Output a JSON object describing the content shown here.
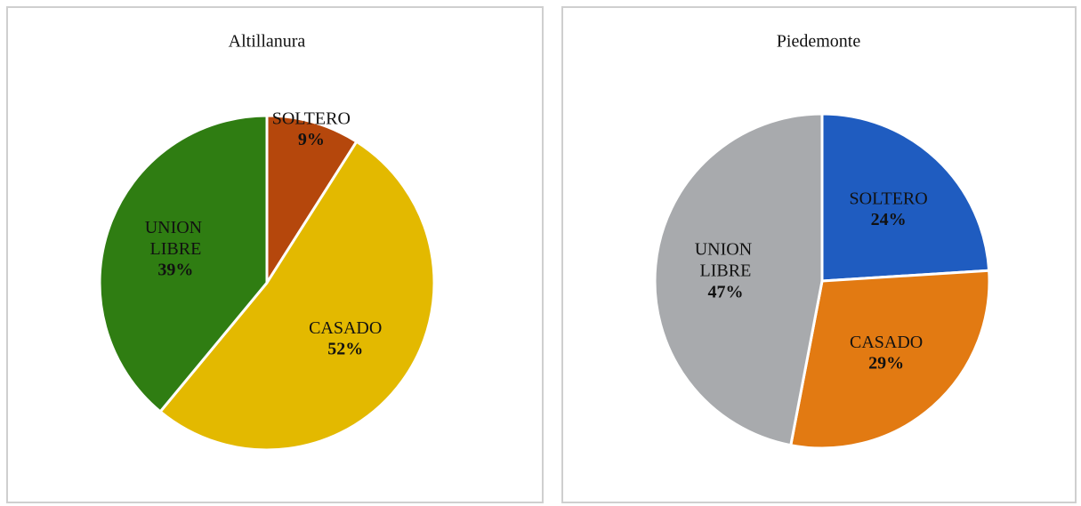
{
  "chart_data": [
    {
      "type": "pie",
      "title": "Altillanura",
      "categories": [
        "SOLTERO",
        "CASADO",
        "UNION LIBRE"
      ],
      "values": [
        9,
        52,
        39
      ],
      "value_labels": [
        "9%",
        "52%",
        "39%"
      ],
      "colors": [
        "#b5470c",
        "#e3b900",
        "#2f7d12"
      ]
    },
    {
      "type": "pie",
      "title": "Piedemonte",
      "categories": [
        "SOLTERO",
        "CASADO",
        "UNION LIBRE"
      ],
      "values": [
        24,
        29,
        47
      ],
      "value_labels": [
        "24%",
        "29%",
        "47%"
      ],
      "colors": [
        "#1f5cc0",
        "#e27a12",
        "#a8aaad"
      ]
    }
  ]
}
